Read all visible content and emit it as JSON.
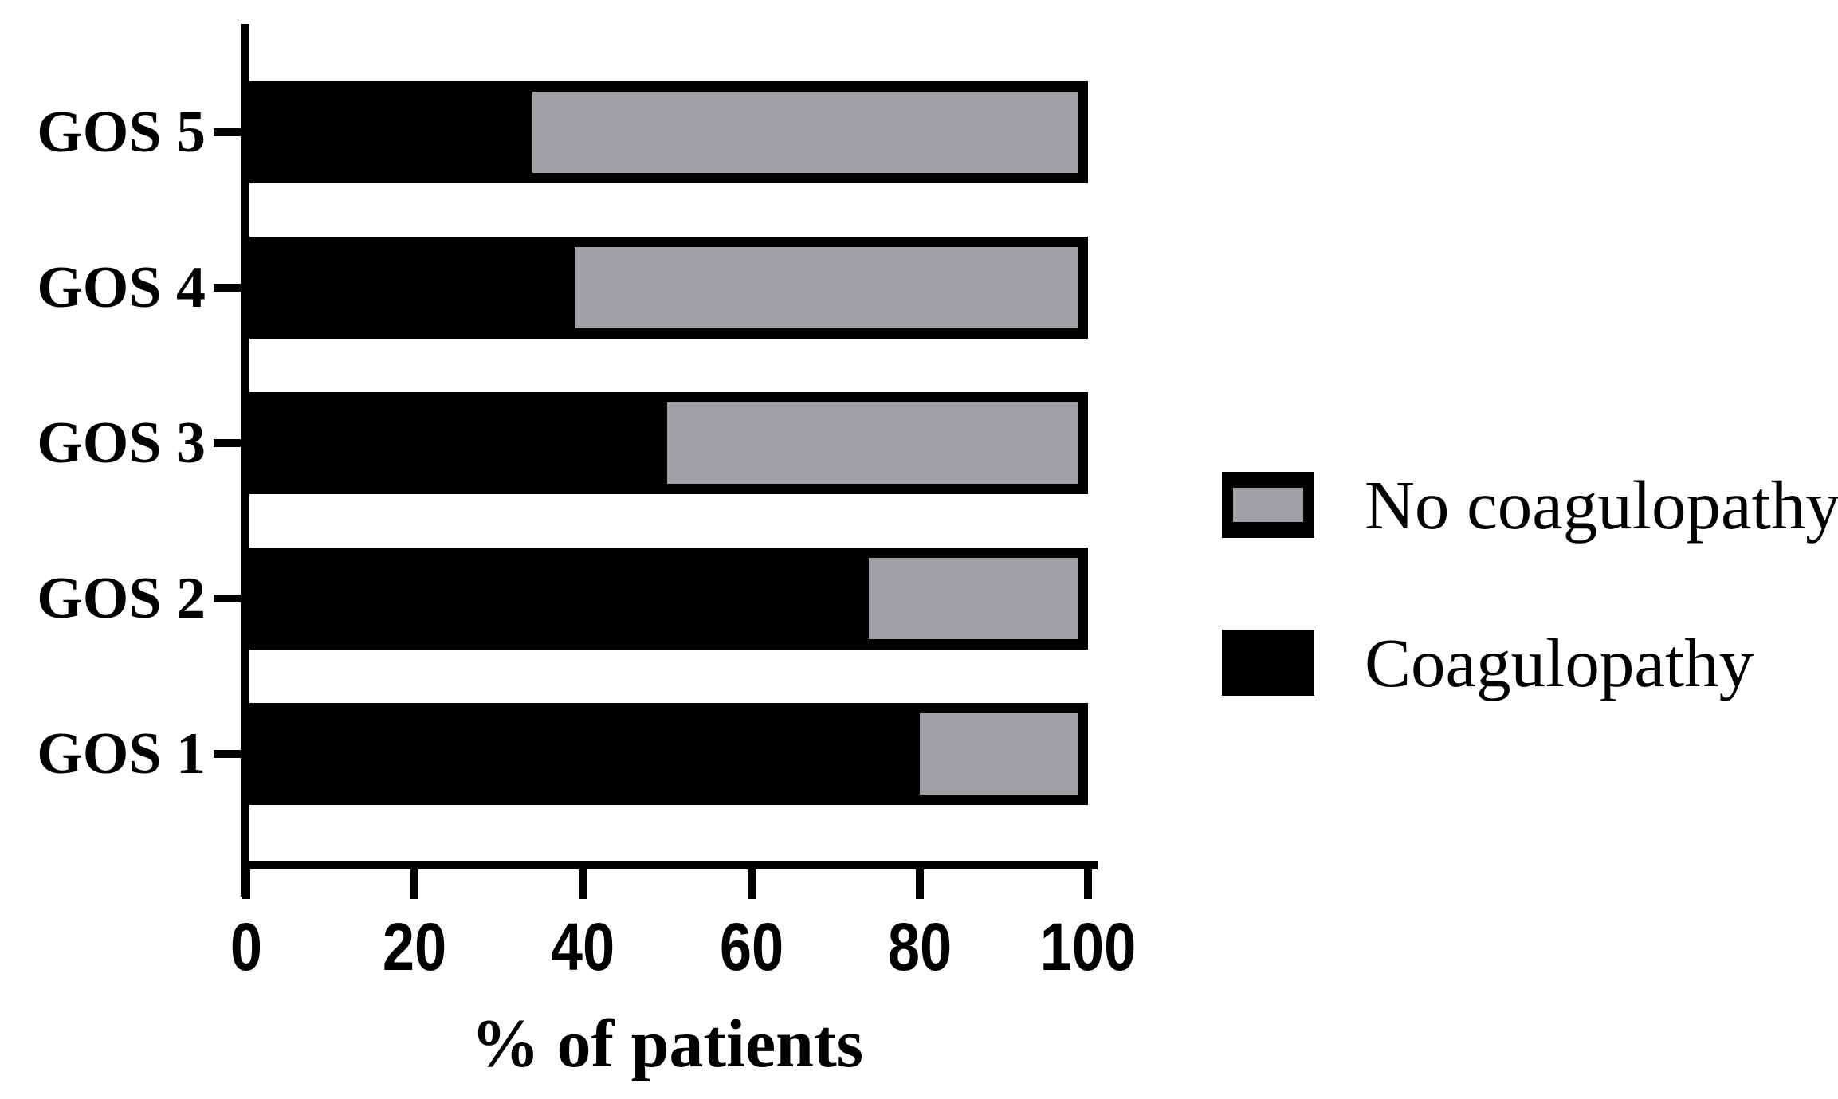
{
  "chart_data": {
    "type": "bar",
    "orientation": "horizontal",
    "stacked": true,
    "title": "",
    "xlabel": "% of patients",
    "ylabel": "",
    "categories": [
      "GOS 5",
      "GOS 4",
      "GOS 3",
      "GOS 2",
      "GOS 1"
    ],
    "series": [
      {
        "name": "Coagulopathy",
        "color": "#000000",
        "values": [
          34,
          39,
          50,
          74,
          80
        ]
      },
      {
        "name": "No coagulopathy",
        "color": "#a0a1a5",
        "values": [
          66,
          61,
          50,
          26,
          20
        ]
      }
    ],
    "x_ticks": [
      "0",
      "20",
      "40",
      "60",
      "80",
      "100"
    ],
    "x_tick_values": [
      0,
      20,
      40,
      60,
      80,
      100
    ],
    "xlim": [
      0,
      100
    ],
    "grid": false,
    "legend_position": "right",
    "legend_order": [
      "No coagulopathy",
      "Coagulopathy"
    ]
  },
  "colors": {
    "bar_fill_coagulopathy": "#000000",
    "bar_fill_no_coagulopathy": "#a0a1a5",
    "axis": "#000000",
    "background": "#ffffff"
  }
}
